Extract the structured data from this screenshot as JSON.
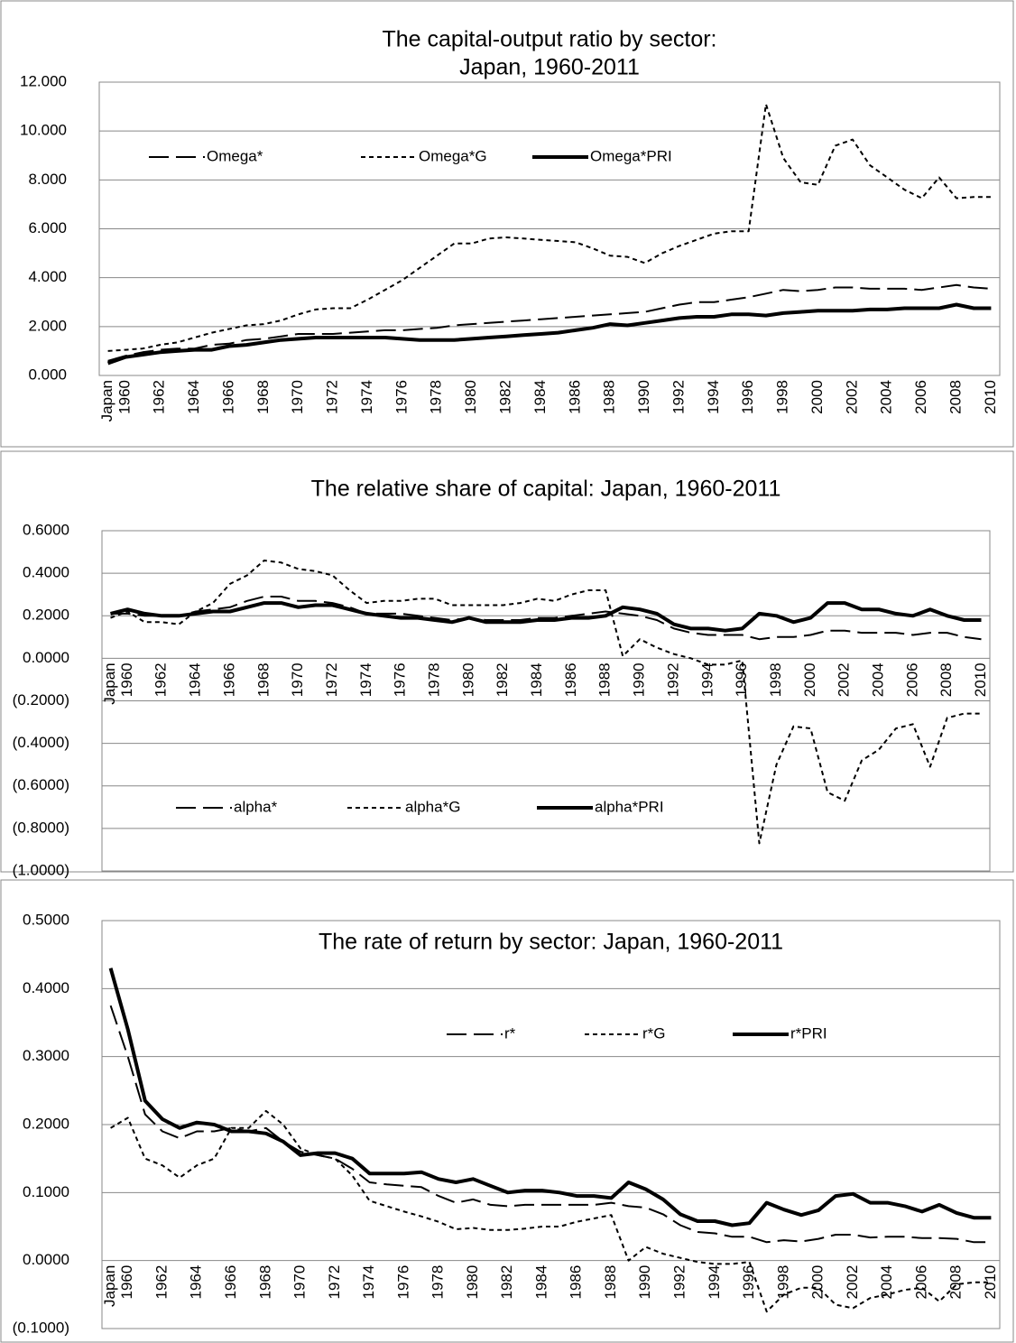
{
  "chart_data": [
    {
      "type": "line",
      "title": [
        "The capital-output ratio by sector:",
        "Japan, 1960-2011"
      ],
      "categories": [
        "Japan",
        "1960",
        null,
        "1962",
        null,
        "1964",
        null,
        "1966",
        null,
        "1968",
        null,
        "1970",
        null,
        "1972",
        null,
        "1974",
        null,
        "1976",
        null,
        "1978",
        null,
        "1980",
        null,
        "1982",
        null,
        "1984",
        null,
        "1986",
        null,
        "1988",
        null,
        "1990",
        null,
        "1992",
        null,
        "1994",
        null,
        "1996",
        null,
        "1998",
        null,
        "2000",
        null,
        "2002",
        null,
        "2004",
        null,
        "2006",
        null,
        "2008",
        null,
        "2010"
      ],
      "ylim": [
        0,
        12
      ],
      "yticks": [
        {
          "value": 0,
          "label": "0.000"
        },
        {
          "value": 2,
          "label": "2.000"
        },
        {
          "value": 4,
          "label": "4.000"
        },
        {
          "value": 6,
          "label": "6.000"
        },
        {
          "value": 8,
          "label": "8.000"
        },
        {
          "value": 10,
          "label": "10.000"
        },
        {
          "value": 12,
          "label": "12.000"
        }
      ],
      "grid": true,
      "legend": "upper left",
      "series": [
        {
          "name": "Omega*",
          "color": "#000000",
          "line_style": "long-dash",
          "values": [
            0.6,
            0.8,
            0.95,
            1.05,
            1.1,
            1.1,
            1.25,
            1.3,
            1.45,
            1.5,
            1.6,
            1.7,
            1.7,
            1.7,
            1.75,
            1.8,
            1.85,
            1.85,
            1.9,
            1.95,
            2.05,
            2.1,
            2.15,
            2.2,
            2.25,
            2.3,
            2.35,
            2.4,
            2.45,
            2.5,
            2.55,
            2.6,
            2.75,
            2.9,
            3.0,
            3.0,
            3.1,
            3.2,
            3.35,
            3.5,
            3.45,
            3.5,
            3.6,
            3.6,
            3.55,
            3.55,
            3.55,
            3.5,
            3.6,
            3.7,
            3.6,
            3.55
          ]
        },
        {
          "name": "Omega*G",
          "color": "#000000",
          "line_style": "short-dash",
          "values": [
            1.0,
            1.05,
            1.1,
            1.25,
            1.35,
            1.55,
            1.75,
            1.9,
            2.05,
            2.1,
            2.25,
            2.5,
            2.7,
            2.75,
            2.75,
            3.1,
            3.5,
            3.9,
            4.4,
            4.9,
            5.4,
            5.4,
            5.6,
            5.65,
            5.6,
            5.55,
            5.5,
            5.45,
            5.2,
            4.9,
            4.85,
            4.6,
            5.0,
            5.3,
            5.55,
            5.8,
            5.9,
            5.9,
            11.1,
            8.9,
            7.9,
            7.8,
            9.4,
            9.65,
            8.6,
            8.1,
            7.6,
            7.25,
            8.1,
            7.25,
            7.3,
            7.3
          ]
        },
        {
          "name": "Omega*PRI",
          "color": "#000000",
          "line_style": "solid",
          "values": [
            0.5,
            0.75,
            0.85,
            0.95,
            1.0,
            1.05,
            1.05,
            1.2,
            1.25,
            1.35,
            1.45,
            1.5,
            1.55,
            1.55,
            1.55,
            1.55,
            1.55,
            1.5,
            1.45,
            1.45,
            1.45,
            1.5,
            1.55,
            1.6,
            1.65,
            1.7,
            1.75,
            1.85,
            1.95,
            2.1,
            2.05,
            2.15,
            2.25,
            2.35,
            2.4,
            2.4,
            2.5,
            2.5,
            2.45,
            2.55,
            2.6,
            2.65,
            2.65,
            2.65,
            2.7,
            2.7,
            2.75,
            2.75,
            2.75,
            2.9,
            2.75,
            2.75
          ]
        }
      ]
    },
    {
      "type": "line",
      "title": [
        "The relative share of capital: Japan, 1960-2011"
      ],
      "categories": [
        "Japan",
        "1960",
        null,
        "1962",
        null,
        "1964",
        null,
        "1966",
        null,
        "1968",
        null,
        "1970",
        null,
        "1972",
        null,
        "1974",
        null,
        "1976",
        null,
        "1978",
        null,
        "1980",
        null,
        "1982",
        null,
        "1984",
        null,
        "1986",
        null,
        "1988",
        null,
        "1990",
        null,
        "1992",
        null,
        "1994",
        null,
        "1996",
        null,
        "1998",
        null,
        "2000",
        null,
        "2002",
        null,
        "2004",
        null,
        "2006",
        null,
        "2008",
        null,
        "2010"
      ],
      "ylim": [
        -1.0,
        0.6
      ],
      "yticks": [
        {
          "value": -1.0,
          "label": "(1.0000)"
        },
        {
          "value": -0.8,
          "label": "(0.8000)"
        },
        {
          "value": -0.6,
          "label": "(0.6000)"
        },
        {
          "value": -0.4,
          "label": "(0.4000)"
        },
        {
          "value": -0.2,
          "label": "(0.2000)"
        },
        {
          "value": 0,
          "label": "0.0000"
        },
        {
          "value": 0.2,
          "label": "0.2000"
        },
        {
          "value": 0.4,
          "label": "0.4000"
        },
        {
          "value": 0.6,
          "label": "0.6000"
        }
      ],
      "grid": true,
      "legend": "lower left",
      "series": [
        {
          "name": "alpha*",
          "color": "#000000",
          "line_style": "long-dash",
          "values": [
            0.21,
            0.21,
            0.2,
            0.2,
            0.2,
            0.22,
            0.23,
            0.24,
            0.27,
            0.29,
            0.29,
            0.27,
            0.27,
            0.26,
            0.24,
            0.21,
            0.21,
            0.21,
            0.2,
            0.19,
            0.18,
            0.19,
            0.18,
            0.18,
            0.18,
            0.19,
            0.19,
            0.2,
            0.21,
            0.22,
            0.21,
            0.2,
            0.18,
            0.14,
            0.12,
            0.11,
            0.11,
            0.11,
            0.09,
            0.1,
            0.1,
            0.11,
            0.13,
            0.13,
            0.12,
            0.12,
            0.12,
            0.11,
            0.12,
            0.12,
            0.1,
            0.09
          ]
        },
        {
          "name": "alpha*G",
          "color": "#000000",
          "line_style": "short-dash",
          "values": [
            0.19,
            0.22,
            0.17,
            0.17,
            0.16,
            0.22,
            0.26,
            0.35,
            0.39,
            0.46,
            0.45,
            0.42,
            0.41,
            0.39,
            0.32,
            0.26,
            0.27,
            0.27,
            0.28,
            0.28,
            0.25,
            0.25,
            0.25,
            0.25,
            0.26,
            0.28,
            0.27,
            0.3,
            0.32,
            0.32,
            0.01,
            0.09,
            0.05,
            0.02,
            0.0,
            -0.03,
            -0.03,
            -0.01,
            -0.87,
            -0.5,
            -0.32,
            -0.33,
            -0.63,
            -0.67,
            -0.48,
            -0.43,
            -0.33,
            -0.31,
            -0.51,
            -0.28,
            -0.26,
            -0.26
          ]
        },
        {
          "name": "alpha*PRI",
          "color": "#000000",
          "line_style": "solid",
          "values": [
            0.21,
            0.23,
            0.21,
            0.2,
            0.2,
            0.21,
            0.22,
            0.22,
            0.24,
            0.26,
            0.26,
            0.24,
            0.25,
            0.25,
            0.23,
            0.21,
            0.2,
            0.19,
            0.19,
            0.18,
            0.17,
            0.19,
            0.17,
            0.17,
            0.17,
            0.18,
            0.18,
            0.19,
            0.19,
            0.2,
            0.24,
            0.23,
            0.21,
            0.16,
            0.14,
            0.14,
            0.13,
            0.14,
            0.21,
            0.2,
            0.17,
            0.19,
            0.26,
            0.26,
            0.23,
            0.23,
            0.21,
            0.2,
            0.23,
            0.2,
            0.18,
            0.18
          ]
        }
      ]
    },
    {
      "type": "line",
      "title": [
        "The rate of return by sector: Japan, 1960-2011"
      ],
      "categories": [
        "Japan",
        "1960",
        null,
        "1962",
        null,
        "1964",
        null,
        "1966",
        null,
        "1968",
        null,
        "1970",
        null,
        "1972",
        null,
        "1974",
        null,
        "1976",
        null,
        "1978",
        null,
        "1980",
        null,
        "1982",
        null,
        "1984",
        null,
        "1986",
        null,
        "1988",
        null,
        "1990",
        null,
        "1992",
        null,
        "1994",
        null,
        "1996",
        null,
        "1998",
        null,
        "2000",
        null,
        "2002",
        null,
        "2004",
        null,
        "2006",
        null,
        "2008",
        null,
        "2010"
      ],
      "ylim": [
        -0.1,
        0.5
      ],
      "yticks": [
        {
          "value": -0.1,
          "label": "(0.1000)"
        },
        {
          "value": 0,
          "label": "0.0000"
        },
        {
          "value": 0.1,
          "label": "0.1000"
        },
        {
          "value": 0.2,
          "label": "0.2000"
        },
        {
          "value": 0.3,
          "label": "0.3000"
        },
        {
          "value": 0.4,
          "label": "0.4000"
        },
        {
          "value": 0.5,
          "label": "0.5000"
        }
      ],
      "grid": true,
      "legend": "upper center",
      "series": [
        {
          "name": "r*",
          "color": "#000000",
          "line_style": "long-dash",
          "values": [
            0.375,
            0.3,
            0.215,
            0.19,
            0.18,
            0.19,
            0.19,
            0.195,
            0.19,
            0.195,
            0.175,
            0.16,
            0.155,
            0.15,
            0.135,
            0.115,
            0.112,
            0.11,
            0.108,
            0.095,
            0.085,
            0.09,
            0.082,
            0.08,
            0.082,
            0.082,
            0.082,
            0.082,
            0.082,
            0.085,
            0.08,
            0.078,
            0.068,
            0.052,
            0.042,
            0.04,
            0.035,
            0.035,
            0.027,
            0.03,
            0.028,
            0.032,
            0.038,
            0.038,
            0.034,
            0.035,
            0.035,
            0.033,
            0.033,
            0.032,
            0.027,
            0.027
          ]
        },
        {
          "name": "r*G",
          "color": "#000000",
          "line_style": "short-dash",
          "values": [
            0.195,
            0.21,
            0.15,
            0.14,
            0.122,
            0.14,
            0.15,
            0.195,
            0.195,
            0.22,
            0.2,
            0.165,
            0.155,
            0.15,
            0.125,
            0.088,
            0.08,
            0.072,
            0.065,
            0.057,
            0.046,
            0.048,
            0.045,
            0.045,
            0.047,
            0.05,
            0.05,
            0.057,
            0.062,
            0.067,
            0.0,
            0.02,
            0.01,
            0.004,
            -0.002,
            -0.005,
            -0.005,
            -0.002,
            -0.075,
            -0.05,
            -0.04,
            -0.04,
            -0.065,
            -0.07,
            -0.055,
            -0.05,
            -0.043,
            -0.04,
            -0.06,
            -0.035,
            -0.032,
            -0.032
          ]
        },
        {
          "name": "r*PRI",
          "color": "#000000",
          "line_style": "solid",
          "values": [
            0.43,
            0.34,
            0.235,
            0.208,
            0.195,
            0.203,
            0.2,
            0.19,
            0.19,
            0.187,
            0.175,
            0.155,
            0.158,
            0.158,
            0.15,
            0.128,
            0.128,
            0.128,
            0.13,
            0.12,
            0.115,
            0.12,
            0.11,
            0.1,
            0.103,
            0.103,
            0.1,
            0.095,
            0.095,
            0.092,
            0.115,
            0.105,
            0.09,
            0.068,
            0.058,
            0.058,
            0.052,
            0.055,
            0.085,
            0.075,
            0.067,
            0.074,
            0.095,
            0.098,
            0.085,
            0.085,
            0.08,
            0.072,
            0.082,
            0.07,
            0.063,
            0.063
          ]
        }
      ]
    }
  ]
}
